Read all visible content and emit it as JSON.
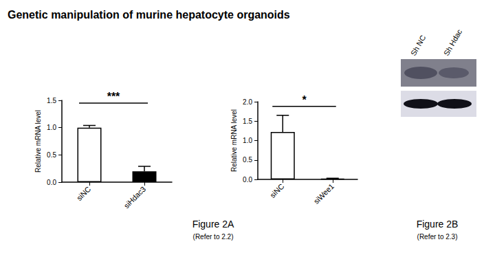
{
  "title": "Genetic manipulation of murine hepatocyte organoids",
  "chart_data": [
    {
      "type": "bar",
      "categories": [
        "siNC",
        "siHdac3"
      ],
      "values": [
        1.0,
        0.2
      ],
      "errors": [
        0.04,
        0.09
      ],
      "colors": [
        "#ffffff",
        "#000000"
      ],
      "ylabel": "Relative mRNA level",
      "ylim": [
        0,
        1.5
      ],
      "yticks": [
        {
          "value": 0,
          "label": "0.0"
        },
        0.5,
        {
          "value": 1,
          "label": "1.0"
        },
        1.5
      ],
      "grid": false,
      "annotations": [
        {
          "text": "***",
          "between": [
            "siNC",
            "siHdac3"
          ],
          "y": 1.45
        }
      ]
    },
    {
      "type": "bar",
      "categories": [
        "siNC",
        "siWee1"
      ],
      "values": [
        1.22,
        0.02
      ],
      "errors": [
        0.43,
        0.01
      ],
      "colors": [
        "#ffffff",
        "#000000"
      ],
      "ylabel": "Relative mRNA level",
      "ylim": [
        0,
        2.0
      ],
      "yticks": [
        {
          "value": 0,
          "label": "0.0"
        },
        0.5,
        {
          "value": 1,
          "label": "1.0"
        },
        1.5,
        {
          "value": 2,
          "label": "2.0"
        }
      ],
      "grid": false,
      "annotations": [
        {
          "text": "*",
          "between": [
            "siNC",
            "siWee1"
          ],
          "y": 1.88
        }
      ]
    }
  ],
  "panels": [
    {
      "caption": "Figure 2A",
      "note": "(Refer to 2.2)"
    },
    {
      "caption": "Figure 2B",
      "note": "(Refer to 2.3)"
    }
  ],
  "blot": {
    "lanes": [
      "Sh NC",
      "Sh Hdac"
    ]
  }
}
